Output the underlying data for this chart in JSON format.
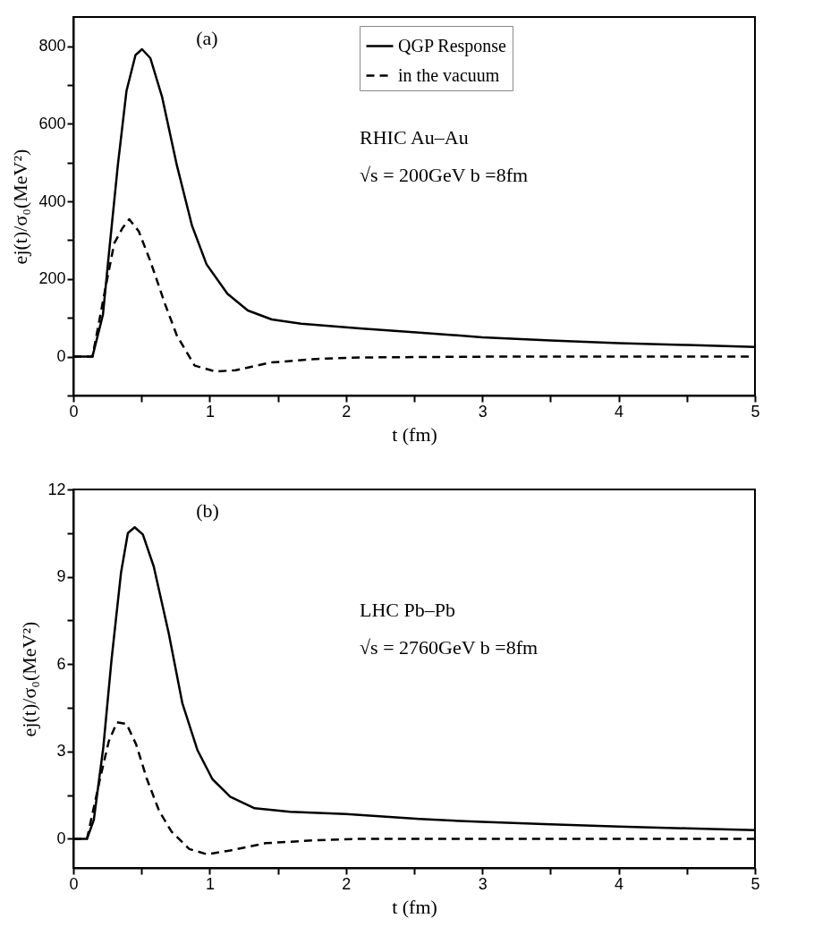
{
  "chart_data": [
    {
      "type": "line",
      "xlabel": "t (fm)",
      "ylabel": "ej(t)/σ₀(MeV²)",
      "xlim": [
        0,
        5
      ],
      "xticks": [
        0,
        {
          "value": 0.5,
          "label": null
        },
        1,
        {
          "value": 1.5,
          "label": null
        },
        2,
        {
          "value": 2.5,
          "label": null
        },
        3,
        {
          "value": 3.5,
          "label": null
        },
        4,
        {
          "value": 4.5,
          "label": null
        },
        5
      ],
      "ylim": [
        -100,
        875
      ],
      "yticks": [
        {
          "value": -100,
          "label": null
        },
        0,
        {
          "value": 100,
          "label": null
        },
        200,
        {
          "value": 300,
          "label": null
        },
        400,
        {
          "value": 500,
          "label": null
        },
        600,
        {
          "value": 700,
          "label": null
        },
        800
      ],
      "legend": "top right",
      "grid": false,
      "annotations": [
        "(a)",
        "RHIC  Au–Au",
        "√s = 200GeV b =8fm"
      ],
      "series": [
        {
          "name": "QGP Response",
          "color": "#000000",
          "line_style": "solid",
          "x": [
            0,
            0.14,
            0.217,
            0.26,
            0.326,
            0.39,
            0.456,
            0.504,
            0.565,
            0.651,
            0.76,
            0.87,
            0.977,
            1.13,
            1.28,
            1.455,
            1.67,
            2.1,
            2.54,
            3,
            3.5,
            4,
            4.5,
            5
          ],
          "values": [
            0,
            0,
            108,
            262,
            492,
            685,
            777,
            792,
            769,
            669,
            492,
            338,
            238,
            162,
            119,
            96,
            85,
            73,
            62,
            50,
            42,
            35,
            30,
            25
          ]
        },
        {
          "name": "in the vacuum",
          "color": "#000000",
          "line_style": "dashed",
          "x": [
            0,
            0.14,
            0.24,
            0.3,
            0.36,
            0.41,
            0.48,
            0.565,
            0.67,
            0.76,
            0.89,
            1.04,
            1.19,
            1.45,
            1.78,
            2.1,
            3,
            4,
            5
          ],
          "values": [
            0,
            0,
            185,
            292,
            331,
            354,
            323,
            246,
            138,
            54,
            -23,
            -38,
            -35,
            -15,
            -6,
            -2,
            0,
            0,
            0
          ]
        }
      ]
    },
    {
      "type": "line",
      "xlabel": "t (fm)",
      "ylabel": "ej(t)/σ₀(MeV²)",
      "xlim": [
        0,
        5
      ],
      "xticks": [
        0,
        {
          "value": 0.5,
          "label": null
        },
        1,
        {
          "value": 1.5,
          "label": null
        },
        2,
        {
          "value": 2.5,
          "label": null
        },
        3,
        {
          "value": 3.5,
          "label": null
        },
        4,
        {
          "value": 4.5,
          "label": null
        },
        5
      ],
      "ylim": [
        -1,
        12
      ],
      "yticks": [
        0,
        {
          "value": 1.5,
          "label": null
        },
        3,
        {
          "value": 4.5,
          "label": null
        },
        6,
        {
          "value": 7.5,
          "label": null
        },
        9,
        {
          "value": 10.5,
          "label": null
        },
        12
      ],
      "legend": "top right",
      "grid": false,
      "annotations": [
        "(b)",
        "LHC  Pb–Pb",
        "√s = 2760GeV b =8fm"
      ],
      "series": [
        {
          "name": "QGP Response",
          "color": "#000000",
          "line_style": "solid",
          "x": [
            0,
            0.1,
            0.15,
            0.22,
            0.28,
            0.35,
            0.4,
            0.45,
            0.51,
            0.59,
            0.7,
            0.8,
            0.91,
            1.02,
            1.15,
            1.33,
            1.59,
            2,
            2.54,
            3,
            3.5,
            4,
            4.5,
            5
          ],
          "values": [
            0,
            0,
            0.65,
            3.15,
            6.15,
            9.15,
            10.5,
            10.7,
            10.45,
            9.35,
            7.05,
            4.65,
            3.05,
            2.05,
            1.45,
            1.05,
            0.93,
            0.85,
            0.68,
            0.58,
            0.5,
            0.42,
            0.36,
            0.3
          ]
        },
        {
          "name": "in the vacuum",
          "color": "#000000",
          "line_style": "dashed",
          "x": [
            0,
            0.1,
            0.2,
            0.26,
            0.32,
            0.39,
            0.46,
            0.54,
            0.63,
            0.72,
            0.85,
            0.98,
            1.15,
            1.41,
            1.78,
            2.1,
            3,
            4,
            5
          ],
          "values": [
            0,
            0,
            2.15,
            3.35,
            4.0,
            3.95,
            3.25,
            2.05,
            0.95,
            0.25,
            -0.35,
            -0.53,
            -0.4,
            -0.15,
            -0.05,
            0,
            0,
            0,
            0
          ]
        }
      ]
    }
  ]
}
